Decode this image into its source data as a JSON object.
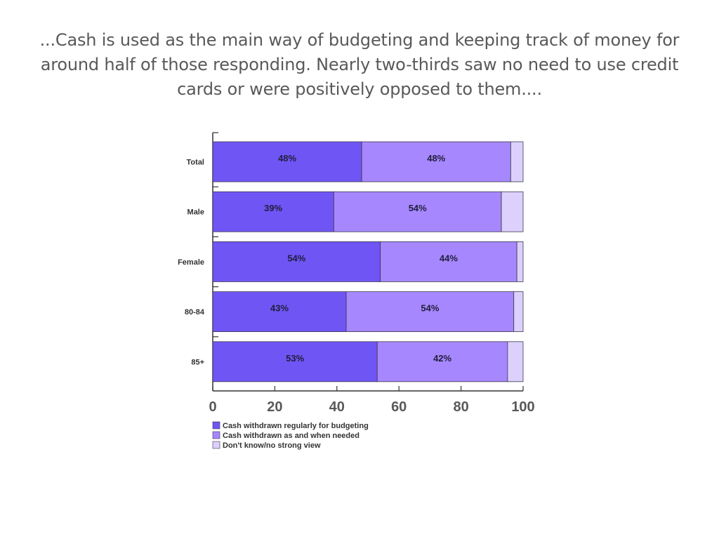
{
  "slide": {
    "title": "...Cash is used as the main way of budgeting and keeping track of money for around half of those responding. Nearly two-thirds saw no need to use credit cards or were positively opposed to them...."
  },
  "chart_data": {
    "type": "bar",
    "orientation": "horizontal",
    "stacked": true,
    "categories": [
      "Total",
      "Male",
      "Female",
      "80-84",
      "85+"
    ],
    "series": [
      {
        "name": "Cash withdrawn regularly for budgeting",
        "color": "#7055f5",
        "values": [
          48,
          39,
          54,
          43,
          53
        ],
        "labels": [
          "48%",
          "39%",
          "54%",
          "43%",
          "53%"
        ]
      },
      {
        "name": "Cash withdrawn as and when needed",
        "color": "#a787fd",
        "values": [
          48,
          54,
          44,
          54,
          42
        ],
        "labels": [
          "48%",
          "54%",
          "44%",
          "54%",
          "42%"
        ]
      },
      {
        "name": "Don't know/no strong view",
        "color": "#dcd0fc",
        "values": [
          4,
          7,
          2,
          3,
          5
        ],
        "labels": [
          "",
          "",
          "",
          "",
          ""
        ]
      }
    ],
    "xlim": [
      0,
      100
    ],
    "xticks": [
      0,
      20,
      40,
      60,
      80,
      100
    ],
    "xlabel": "",
    "ylabel": "",
    "grid": false,
    "legend_position": "bottom-left"
  }
}
